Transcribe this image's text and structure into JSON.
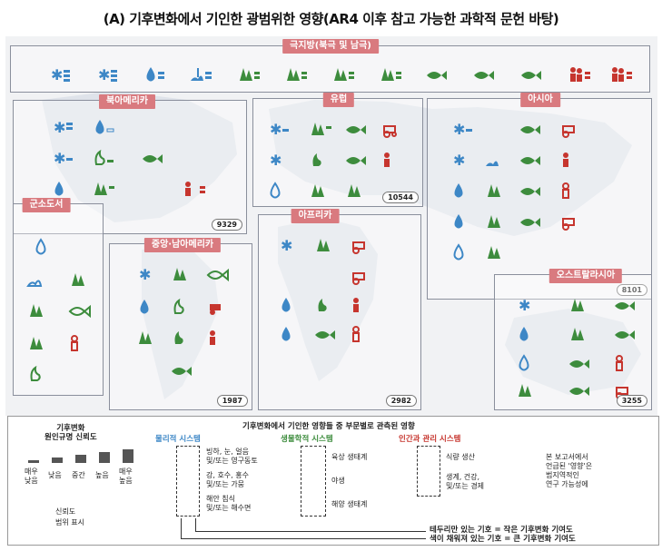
{
  "title": "(A) 기후변화에서 기인한 광범위한 영향(AR4 이후 참고 가능한 과학적 문헌 바탕)",
  "colors": {
    "physical": "#3d87c6",
    "biological": "#3d8c3d",
    "human": "#c6352e",
    "region_label": "#d97a7f"
  },
  "regions": {
    "polar": {
      "label": "극지방(북극 및 남극)",
      "code": ""
    },
    "north_america": {
      "label": "북아메리카",
      "code": "9329"
    },
    "europe": {
      "label": "유럽",
      "code": "10544"
    },
    "asia": {
      "label": "아시아",
      "code": "8101"
    },
    "small_islands": {
      "label": "군소도서",
      "code": ""
    },
    "central_south_america": {
      "label": "중앙·남아메리카",
      "code": "1987"
    },
    "africa": {
      "label": "아프리카",
      "code": "2982"
    },
    "australasia": {
      "label": "오스트랄라시아",
      "code": "3255"
    }
  },
  "legend": {
    "attribution_title": "기후변화\n원인규명 신뢰도",
    "conf_levels": [
      "매우\n낮음",
      "낮음",
      "중간",
      "높음",
      "매우\n높음"
    ],
    "conf_marks": [
      "신뢰도",
      "범위 표시"
    ],
    "observed_title": "기후변화에서 기인한 영향들 중 부문별로 관측된 영향",
    "physical_title": "물리적 시스템",
    "biological_title": "생물학적 시스템",
    "human_title": "인간과 관리 시스템",
    "physical_items": [
      "빙하, 눈, 얼음\n및/또는 영구동토",
      "강, 호수, 홍수\n및/또는 가뭄",
      "해안 침식\n및/또는 해수면"
    ],
    "biological_items": [
      "육상 생태계",
      "야생",
      "해양 생태계"
    ],
    "human_items": [
      "식량 생산",
      "생계, 건강,\n및/또는 경제"
    ],
    "star_note": "본 보고서에서\n언급된 '영향'은\n범지역적인\n연구 가능성에",
    "outline_note": "테두리만 있는 기호 = 작은 기후변화 기여도",
    "filled_note": "색이 채워져 있는 기호 = 큰 기후변화 기여도"
  }
}
